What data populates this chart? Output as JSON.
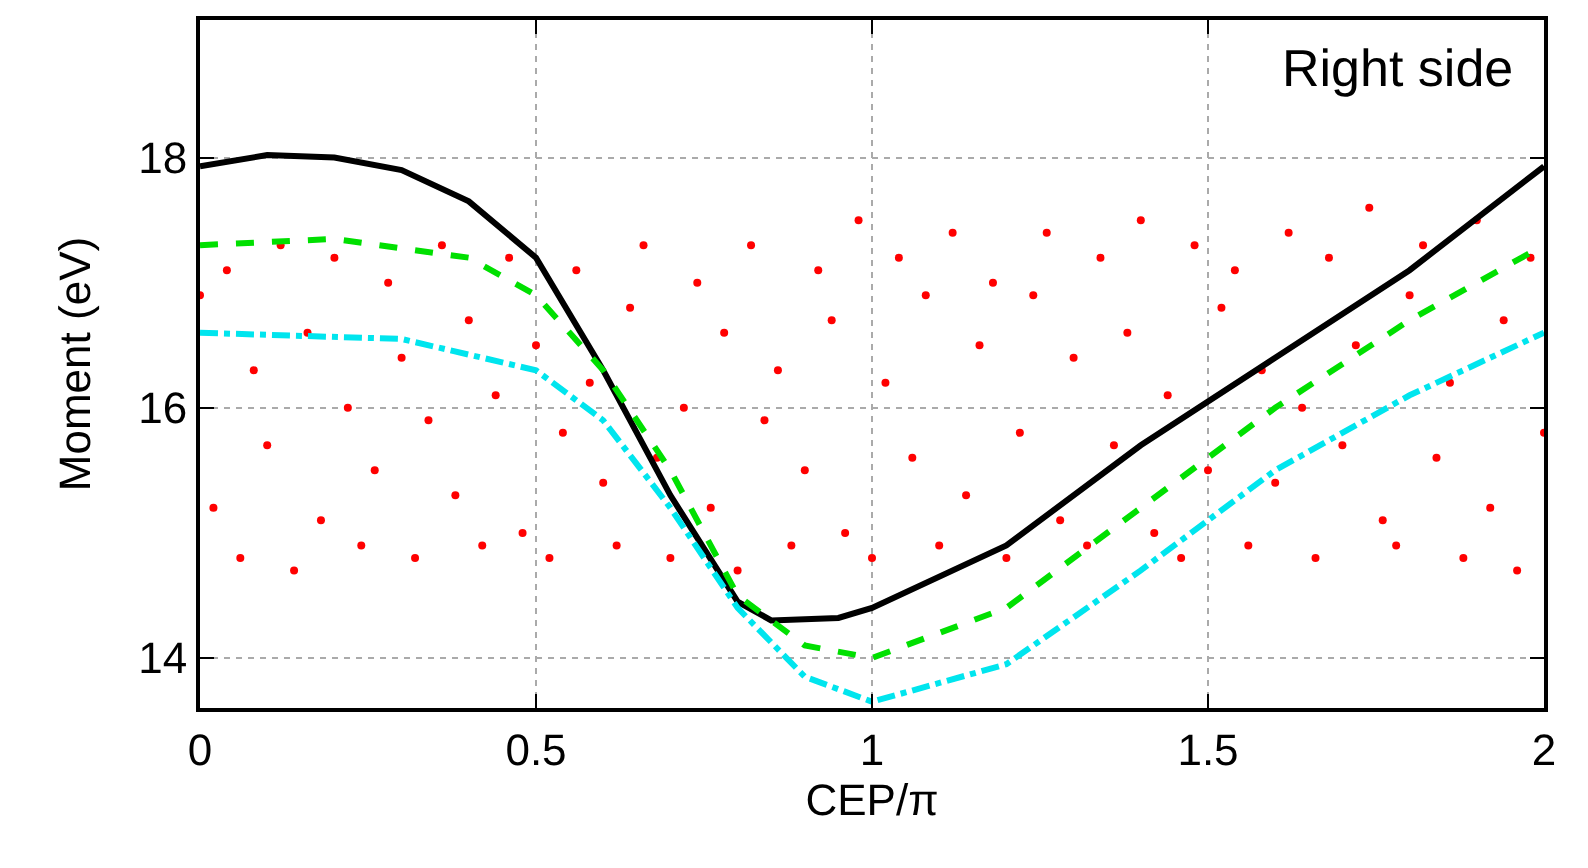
{
  "chart_data": {
    "type": "line",
    "xlabel": "CEP/π",
    "ylabel": "Moment (eV)",
    "xlim": [
      0,
      2
    ],
    "ylim": [
      13.6,
      19.1
    ],
    "xticks": [
      0,
      0.5,
      1,
      1.5,
      2
    ],
    "yticks": [
      14,
      16,
      18
    ],
    "grid": true,
    "annotations": [
      "Right side"
    ],
    "series": [
      {
        "type": "scatter",
        "color": "#ff0000",
        "marker": "circle",
        "x": [
          0,
          0.02,
          0.04,
          0.06,
          0.08,
          0.1,
          0.12,
          0.14,
          0.16,
          0.18,
          0.2,
          0.22,
          0.24,
          0.26,
          0.28,
          0.3,
          0.32,
          0.34,
          0.36,
          0.38,
          0.4,
          0.42,
          0.44,
          0.46,
          0.48,
          0.5,
          0.52,
          0.54,
          0.56,
          0.58,
          0.6,
          0.62,
          0.64,
          0.66,
          0.68,
          0.7,
          0.72,
          0.74,
          0.76,
          0.78,
          0.8,
          0.82,
          0.84,
          0.86,
          0.88,
          0.9,
          0.92,
          0.94,
          0.96,
          0.98,
          1,
          1.02,
          1.04,
          1.06,
          1.08,
          1.1,
          1.12,
          1.14,
          1.16,
          1.18,
          1.2,
          1.22,
          1.24,
          1.26,
          1.28,
          1.3,
          1.32,
          1.34,
          1.36,
          1.38,
          1.4,
          1.42,
          1.44,
          1.46,
          1.48,
          1.5,
          1.52,
          1.54,
          1.56,
          1.58,
          1.6,
          1.62,
          1.64,
          1.66,
          1.68,
          1.7,
          1.72,
          1.74,
          1.76,
          1.78,
          1.8,
          1.82,
          1.84,
          1.86,
          1.88,
          1.9,
          1.92,
          1.94,
          1.96,
          1.98,
          2
        ],
        "values": [
          16.9,
          15.2,
          17.1,
          14.8,
          16.3,
          15.7,
          17.3,
          14.7,
          16.6,
          15.1,
          17.2,
          16.0,
          14.9,
          15.5,
          17.0,
          16.4,
          14.8,
          15.9,
          17.3,
          15.3,
          16.7,
          14.9,
          16.1,
          17.2,
          15.0,
          16.5,
          14.8,
          15.8,
          17.1,
          16.2,
          15.4,
          14.9,
          16.8,
          17.3,
          15.6,
          14.8,
          16.0,
          17.0,
          15.2,
          16.6,
          14.7,
          17.3,
          15.9,
          16.3,
          14.9,
          15.5,
          17.1,
          16.7,
          15.0,
          17.5,
          14.8,
          16.2,
          17.2,
          15.6,
          16.9,
          14.9,
          17.4,
          15.3,
          16.5,
          17.0,
          14.8,
          15.8,
          16.9,
          17.4,
          15.1,
          16.4,
          14.9,
          17.2,
          15.7,
          16.6,
          17.5,
          15.0,
          16.1,
          14.8,
          17.3,
          15.5,
          16.8,
          17.1,
          14.9,
          16.3,
          15.4,
          17.4,
          16.0,
          14.8,
          17.2,
          15.7,
          16.5,
          17.6,
          15.1,
          14.9,
          16.9,
          17.3,
          15.6,
          16.2,
          14.8,
          17.5,
          15.2,
          16.7,
          14.7,
          17.2,
          15.8
        ]
      },
      {
        "color": "#000000",
        "line_style": "solid",
        "x": [
          0,
          0.1,
          0.2,
          0.3,
          0.4,
          0.5,
          0.6,
          0.7,
          0.8,
          0.85,
          0.95,
          1,
          1.2,
          1.4,
          1.6,
          1.8,
          2
        ],
        "values": [
          17.93,
          18.02,
          18.0,
          17.9,
          17.65,
          17.2,
          16.3,
          15.3,
          14.45,
          14.3,
          14.32,
          14.4,
          14.9,
          15.7,
          16.4,
          17.1,
          17.93
        ]
      },
      {
        "color": "#00e000",
        "line_style": "dotted",
        "x": [
          0,
          0.2,
          0.4,
          0.5,
          0.6,
          0.7,
          0.8,
          0.9,
          1,
          1.2,
          1.4,
          1.6,
          1.8,
          2
        ],
        "values": [
          17.3,
          17.35,
          17.2,
          16.9,
          16.3,
          15.5,
          14.5,
          14.1,
          14.0,
          14.4,
          15.2,
          16.0,
          16.7,
          17.3
        ]
      },
      {
        "color": "#00e5ee",
        "line_style": "dashed",
        "x": [
          0,
          0.3,
          0.5,
          0.6,
          0.7,
          0.8,
          0.9,
          1,
          1.2,
          1.4,
          1.6,
          1.8,
          2
        ],
        "values": [
          16.6,
          16.55,
          16.3,
          15.9,
          15.2,
          14.4,
          13.85,
          13.65,
          13.95,
          14.7,
          15.5,
          16.1,
          16.6
        ]
      }
    ]
  }
}
